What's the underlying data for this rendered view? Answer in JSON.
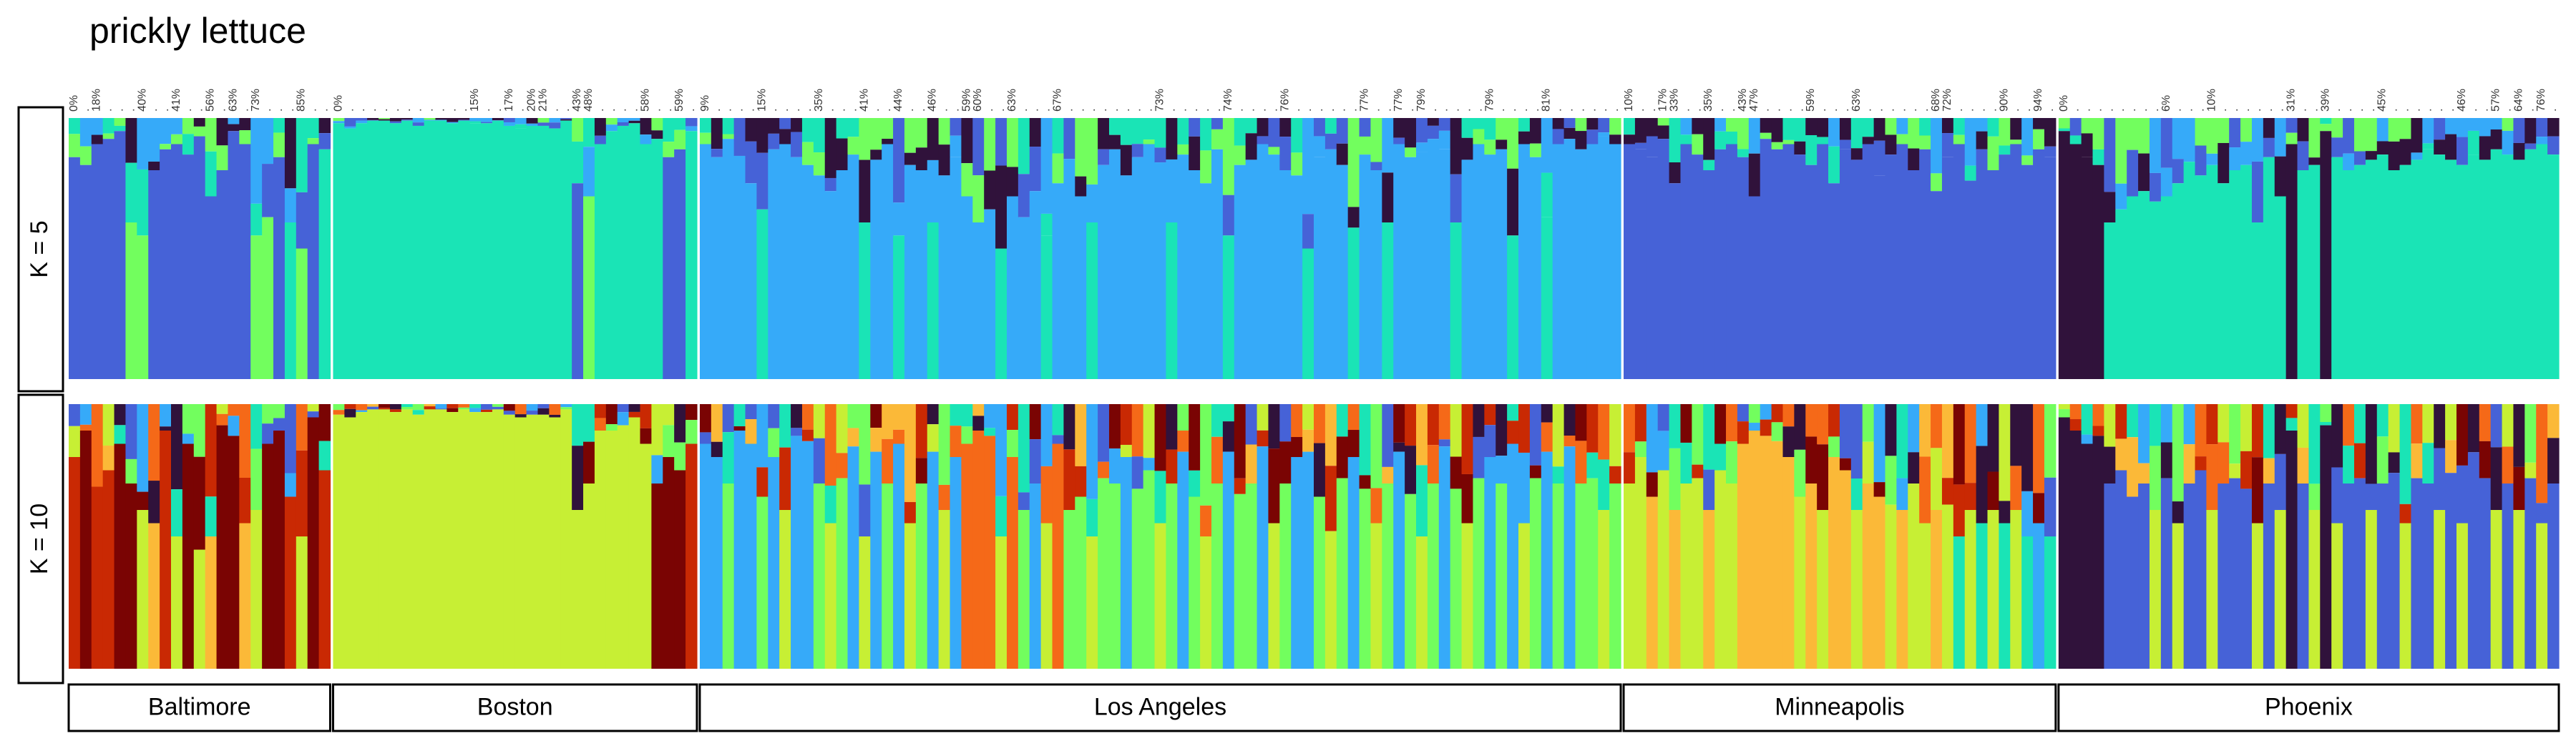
{
  "chart_data": {
    "type": "bar",
    "title": "prickly lettuce",
    "stacked": true,
    "normalized": true,
    "panels": [
      {
        "label": "K = 5",
        "k": 5
      },
      {
        "label": "K = 10",
        "k": 10
      }
    ],
    "palette": [
      "#30123b",
      "#4662d7",
      "#36aaf9",
      "#1ae4b6",
      "#72fe5e",
      "#c7ef34",
      "#fbb938",
      "#f56918",
      "#c92903",
      "#7a0403"
    ],
    "populations": [
      {
        "name": "Baltimore",
        "tick_labels": [
          "0%",
          ".",
          "18%",
          ".",
          ".",
          ".",
          "40%",
          ".",
          ".",
          "41%",
          ".",
          ".",
          "56%",
          ".",
          "63%",
          ".",
          "73%",
          ".",
          ".",
          ".",
          "85%",
          ".",
          "."
        ],
        "k5": {
          "major": [
            1,
            1,
            1,
            1,
            1,
            4,
            4,
            1,
            1,
            1,
            1,
            1,
            1,
            1,
            1,
            1,
            4,
            4,
            1,
            3,
            4,
            1,
            3
          ],
          "major_share": [
            0.85,
            0.82,
            0.9,
            0.92,
            0.95,
            0.6,
            0.55,
            0.8,
            0.88,
            0.9,
            0.86,
            0.93,
            0.7,
            0.8,
            0.95,
            0.9,
            0.55,
            0.62,
            0.85,
            0.6,
            0.5,
            0.9,
            0.88
          ]
        },
        "k10": {
          "major": [
            8,
            9,
            8,
            8,
            9,
            9,
            5,
            6,
            8,
            5,
            9,
            5,
            6,
            9,
            9,
            6,
            5,
            9,
            9,
            8,
            5,
            9,
            8
          ],
          "major_share": [
            0.8,
            0.9,
            0.6,
            0.75,
            0.85,
            0.7,
            0.6,
            0.55,
            0.9,
            0.5,
            0.85,
            0.45,
            0.5,
            0.92,
            0.88,
            0.55,
            0.6,
            0.85,
            0.9,
            0.65,
            0.5,
            0.95,
            0.75
          ]
        }
      },
      {
        "name": "Boston",
        "tick_labels": [
          "0%",
          ".",
          ".",
          ".",
          ".",
          ".",
          ".",
          ".",
          ".",
          ".",
          ".",
          ".",
          "15%",
          ".",
          ".",
          "17%",
          ".",
          "20%",
          "21%",
          ".",
          ".",
          "43%",
          "48%",
          ".",
          ".",
          ".",
          ".",
          "58%",
          ".",
          ".",
          "59%",
          "."
        ],
        "k5": {
          "major": [
            3,
            3,
            3,
            3,
            3,
            3,
            3,
            3,
            3,
            3,
            3,
            3,
            3,
            3,
            3,
            3,
            3,
            3,
            3,
            3,
            3,
            1,
            4,
            3,
            3,
            3,
            3,
            3,
            3,
            1,
            1,
            3
          ],
          "major_share": [
            0.98,
            0.96,
            0.98,
            0.99,
            0.99,
            0.98,
            0.99,
            0.97,
            0.99,
            0.99,
            0.98,
            0.99,
            0.98,
            0.98,
            0.99,
            0.97,
            0.96,
            0.97,
            0.97,
            0.96,
            0.99,
            0.75,
            0.7,
            0.9,
            0.95,
            0.97,
            0.98,
            0.9,
            0.92,
            0.85,
            0.88,
            0.95
          ]
        },
        "k10": {
          "major": [
            5,
            5,
            5,
            5,
            5,
            5,
            5,
            5,
            5,
            5,
            5,
            5,
            5,
            5,
            5,
            5,
            5,
            5,
            5,
            5,
            5,
            5,
            5,
            5,
            5,
            5,
            5,
            5,
            9,
            9,
            9,
            8
          ],
          "major_share": [
            0.96,
            0.95,
            0.97,
            0.98,
            0.98,
            0.97,
            0.98,
            0.96,
            0.98,
            0.98,
            0.97,
            0.98,
            0.97,
            0.97,
            0.98,
            0.96,
            0.95,
            0.96,
            0.96,
            0.95,
            0.98,
            0.6,
            0.7,
            0.9,
            0.9,
            0.92,
            0.95,
            0.85,
            0.7,
            0.8,
            0.75,
            0.85
          ]
        }
      },
      {
        "name": "Los Angeles",
        "tick_labels": [
          "9%",
          ".",
          ".",
          ".",
          ".",
          "15%",
          ".",
          ".",
          ".",
          ".",
          "35%",
          ".",
          ".",
          ".",
          "41%",
          ".",
          ".",
          "44%",
          ".",
          ".",
          "46%",
          ".",
          ".",
          "59%",
          "60%",
          ".",
          ".",
          "63%",
          ".",
          ".",
          ".",
          "67%",
          ".",
          ".",
          ".",
          ".",
          ".",
          ".",
          ".",
          ".",
          "73%",
          ".",
          ".",
          ".",
          ".",
          ".",
          "74%",
          ".",
          ".",
          ".",
          ".",
          "76%",
          ".",
          ".",
          ".",
          ".",
          ".",
          ".",
          "77%",
          ".",
          ".",
          "77%",
          ".",
          "79%",
          ".",
          ".",
          ".",
          ".",
          ".",
          "79%",
          ".",
          ".",
          ".",
          ".",
          "81%",
          ".",
          ".",
          ".",
          ".",
          ".",
          "."
        ],
        "k5": {
          "major": [
            2,
            2,
            2,
            2,
            2,
            3,
            2,
            2,
            2,
            2,
            2,
            2,
            2,
            2,
            3,
            2,
            2,
            3,
            2,
            2,
            3,
            2,
            2,
            2,
            2,
            2,
            3,
            2,
            2,
            2,
            3,
            2,
            2,
            2,
            3,
            2,
            2,
            2,
            2,
            2,
            2,
            3,
            2,
            2,
            2,
            2,
            3,
            2,
            2,
            2,
            2,
            2,
            2,
            3,
            2,
            2,
            2,
            3,
            2,
            2,
            3,
            2,
            2,
            2,
            2,
            2,
            3,
            2,
            2,
            2,
            2,
            3,
            2,
            2,
            3,
            2,
            2,
            2,
            2,
            2,
            2
          ],
          "major_share": [
            0.9,
            0.85,
            0.92,
            0.8,
            0.75,
            0.65,
            0.88,
            0.9,
            0.85,
            0.82,
            0.78,
            0.72,
            0.8,
            0.86,
            0.6,
            0.84,
            0.9,
            0.55,
            0.82,
            0.8,
            0.6,
            0.78,
            0.85,
            0.7,
            0.6,
            0.65,
            0.5,
            0.7,
            0.62,
            0.72,
            0.55,
            0.75,
            0.8,
            0.7,
            0.6,
            0.82,
            0.88,
            0.78,
            0.85,
            0.9,
            0.83,
            0.6,
            0.86,
            0.8,
            0.75,
            0.88,
            0.55,
            0.82,
            0.84,
            0.9,
            0.86,
            0.8,
            0.78,
            0.5,
            0.85,
            0.88,
            0.82,
            0.58,
            0.86,
            0.8,
            0.6,
            0.9,
            0.85,
            0.87,
            0.92,
            0.88,
            0.6,
            0.84,
            0.9,
            0.86,
            0.88,
            0.55,
            0.9,
            0.85,
            0.62,
            0.9,
            0.92,
            0.88,
            0.9,
            0.93,
            0.9
          ]
        },
        "k10": {
          "major": [
            2,
            2,
            4,
            2,
            2,
            4,
            2,
            5,
            2,
            2,
            4,
            5,
            4,
            2,
            5,
            2,
            4,
            2,
            5,
            4,
            2,
            5,
            2,
            7,
            7,
            7,
            5,
            7,
            4,
            2,
            5,
            7,
            4,
            4,
            5,
            4,
            4,
            2,
            4,
            4,
            5,
            4,
            2,
            4,
            5,
            4,
            2,
            4,
            4,
            2,
            5,
            4,
            2,
            2,
            4,
            5,
            4,
            2,
            4,
            5,
            4,
            2,
            4,
            5,
            4,
            2,
            4,
            5,
            4,
            2,
            4,
            2,
            5,
            4,
            2,
            4,
            2,
            4,
            4,
            5,
            4
          ],
          "major_share": [
            0.85,
            0.8,
            0.7,
            0.9,
            0.85,
            0.65,
            0.8,
            0.6,
            0.88,
            0.86,
            0.7,
            0.55,
            0.72,
            0.84,
            0.5,
            0.82,
            0.7,
            0.85,
            0.55,
            0.7,
            0.82,
            0.6,
            0.8,
            0.85,
            0.9,
            0.88,
            0.5,
            0.8,
            0.6,
            0.7,
            0.55,
            0.85,
            0.6,
            0.65,
            0.5,
            0.72,
            0.7,
            0.8,
            0.68,
            0.75,
            0.55,
            0.7,
            0.82,
            0.65,
            0.5,
            0.7,
            0.82,
            0.66,
            0.7,
            0.84,
            0.55,
            0.7,
            0.8,
            0.82,
            0.65,
            0.52,
            0.72,
            0.8,
            0.68,
            0.55,
            0.7,
            0.82,
            0.66,
            0.5,
            0.7,
            0.84,
            0.68,
            0.55,
            0.72,
            0.8,
            0.7,
            0.85,
            0.55,
            0.72,
            0.82,
            0.7,
            0.84,
            0.7,
            0.72,
            0.6,
            0.7
          ]
        }
      },
      {
        "name": "Minneapolis",
        "tick_labels": [
          "10%",
          ".",
          ".",
          "17%",
          "33%",
          ".",
          ".",
          "35%",
          ".",
          ".",
          "43%",
          "47%",
          ".",
          ".",
          ".",
          ".",
          "59%",
          ".",
          ".",
          ".",
          "63%",
          ".",
          ".",
          ".",
          ".",
          ".",
          ".",
          "68%",
          "72%",
          ".",
          ".",
          ".",
          ".",
          "90%",
          ".",
          ".",
          "94%",
          "."
        ],
        "k5": {
          "major": [
            1,
            1,
            1,
            1,
            1,
            1,
            1,
            1,
            1,
            1,
            1,
            1,
            1,
            1,
            1,
            1,
            1,
            1,
            1,
            1,
            1,
            1,
            1,
            1,
            1,
            1,
            1,
            1,
            1,
            1,
            1,
            1,
            1,
            1,
            1,
            1,
            1,
            1
          ],
          "major_share": [
            0.9,
            0.88,
            0.85,
            0.92,
            0.75,
            0.9,
            0.86,
            0.8,
            0.88,
            0.9,
            0.85,
            0.7,
            0.92,
            0.88,
            0.9,
            0.86,
            0.82,
            0.9,
            0.75,
            0.88,
            0.84,
            0.9,
            0.78,
            0.86,
            0.9,
            0.8,
            0.88,
            0.72,
            0.85,
            0.9,
            0.76,
            0.88,
            0.8,
            0.86,
            0.9,
            0.82,
            0.88,
            0.85
          ]
        },
        "k10": {
          "major": [
            5,
            5,
            6,
            5,
            6,
            5,
            5,
            6,
            5,
            5,
            6,
            6,
            6,
            6,
            6,
            5,
            6,
            5,
            6,
            6,
            5,
            6,
            6,
            5,
            6,
            5,
            5,
            6,
            5,
            3,
            5,
            3,
            5,
            3,
            5,
            3,
            2,
            3
          ],
          "major_share": [
            0.7,
            0.8,
            0.65,
            0.75,
            0.6,
            0.7,
            0.72,
            0.6,
            0.75,
            0.7,
            0.85,
            0.9,
            0.88,
            0.86,
            0.8,
            0.65,
            0.7,
            0.6,
            0.8,
            0.75,
            0.6,
            0.7,
            0.65,
            0.62,
            0.6,
            0.7,
            0.55,
            0.6,
            0.62,
            0.5,
            0.6,
            0.55,
            0.6,
            0.55,
            0.6,
            0.5,
            0.55,
            0.5
          ]
        }
      },
      {
        "name": "Phoenix",
        "tick_labels": [
          "0%",
          ".",
          ".",
          ".",
          ".",
          ".",
          ".",
          ".",
          ".",
          "6%",
          ".",
          ".",
          ".",
          "10%",
          ".",
          ".",
          ".",
          ".",
          ".",
          ".",
          "31%",
          ".",
          ".",
          "39%",
          ".",
          ".",
          ".",
          ".",
          "45%",
          ".",
          ".",
          ".",
          ".",
          ".",
          ".",
          "46%",
          ".",
          ".",
          "57%",
          ".",
          "64%",
          ".",
          "76%",
          "."
        ],
        "k5": {
          "major": [
            0,
            0,
            0,
            0,
            3,
            3,
            3,
            3,
            3,
            3,
            3,
            3,
            3,
            3,
            3,
            3,
            3,
            3,
            3,
            3,
            0,
            3,
            3,
            0,
            3,
            3,
            3,
            3,
            3,
            3,
            3,
            3,
            3,
            3,
            3,
            3,
            3,
            3,
            3,
            3,
            3,
            3,
            3,
            3
          ],
          "major_share": [
            0.95,
            0.9,
            0.85,
            0.82,
            0.6,
            0.65,
            0.7,
            0.72,
            0.68,
            0.7,
            0.75,
            0.8,
            0.78,
            0.82,
            0.75,
            0.8,
            0.82,
            0.6,
            0.85,
            0.7,
            0.9,
            0.8,
            0.82,
            0.95,
            0.85,
            0.8,
            0.82,
            0.84,
            0.86,
            0.8,
            0.82,
            0.84,
            0.88,
            0.86,
            0.84,
            0.82,
            0.86,
            0.84,
            0.88,
            0.86,
            0.84,
            0.88,
            0.9,
            0.86
          ]
        },
        "k10": {
          "major": [
            0,
            0,
            0,
            0,
            1,
            1,
            1,
            1,
            5,
            1,
            5,
            1,
            1,
            5,
            1,
            1,
            1,
            5,
            1,
            5,
            0,
            1,
            5,
            0,
            5,
            1,
            1,
            5,
            1,
            1,
            5,
            1,
            1,
            5,
            1,
            5,
            1,
            1,
            5,
            1,
            5,
            1,
            5,
            1
          ],
          "major_share": [
            0.95,
            0.9,
            0.85,
            0.88,
            0.7,
            0.75,
            0.65,
            0.7,
            0.6,
            0.72,
            0.55,
            0.7,
            0.75,
            0.6,
            0.7,
            0.72,
            0.68,
            0.55,
            0.7,
            0.6,
            0.9,
            0.7,
            0.6,
            0.92,
            0.55,
            0.7,
            0.72,
            0.6,
            0.7,
            0.74,
            0.55,
            0.72,
            0.7,
            0.6,
            0.74,
            0.55,
            0.7,
            0.72,
            0.6,
            0.7,
            0.6,
            0.72,
            0.55,
            0.7
          ]
        }
      }
    ]
  }
}
